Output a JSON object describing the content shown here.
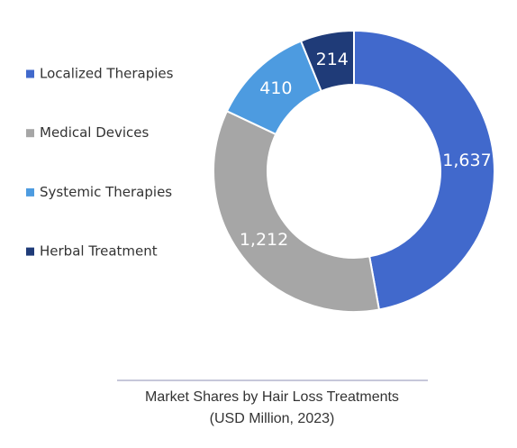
{
  "chart_data": {
    "type": "donut",
    "title": "Market Shares by Hair Loss Treatments",
    "subtitle": "(USD Million, 2023)",
    "categories": [
      "Localized Therapies",
      "Medical Devices",
      "Systemic Therapies",
      "Herbal Treatment"
    ],
    "values": [
      1637,
      1212,
      410,
      214
    ],
    "value_labels": [
      "1,637",
      "1,212",
      "410",
      "214"
    ],
    "colors": [
      "#4169cc",
      "#a6a6a6",
      "#4d9be0",
      "#1f3b78"
    ],
    "legend": "left"
  }
}
